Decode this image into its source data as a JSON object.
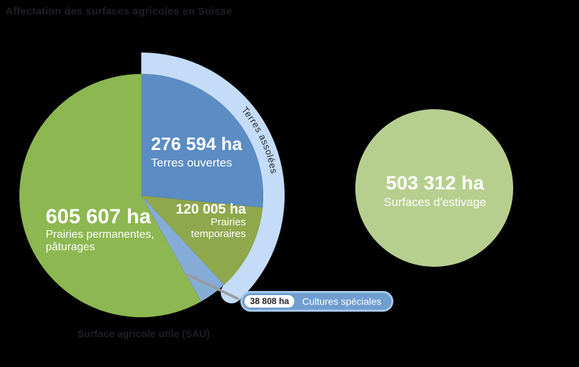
{
  "title": "Affectation des surfaces agricoles en Suisse",
  "caption": "Surface agricole utile (SAU)",
  "unit": "ha",
  "background_color": "#000000",
  "text_dark_color": "#1f1f26",
  "chart_data": {
    "type": "pie",
    "title": "Affectation des surfaces agricoles en Suisse",
    "unit": "ha",
    "start_angle_deg": 0,
    "direction": "clockwise",
    "slices": [
      {
        "id": "terres-ouvertes",
        "label": "Terres ouvertes",
        "value": 276594,
        "display": "276 594 ha",
        "color": "#5b8cc4"
      },
      {
        "id": "prairies-temporaires",
        "label": "Prairies temporaires",
        "label_lines": [
          "Prairies",
          "temporaires"
        ],
        "value": 120005,
        "display": "120 005 ha",
        "color": "#90a84c"
      },
      {
        "id": "cultures-speciales",
        "label": "Cultures spéciales",
        "value": 38808,
        "display": "38 808 ha",
        "color": "#85acd6"
      },
      {
        "id": "prairies-permanentes",
        "label": "Prairies permanentes, pâturages",
        "label_lines": [
          "Prairies permanentes,",
          "pâturages"
        ],
        "value": 605607,
        "display": "605 607 ha",
        "color": "#8db750"
      }
    ],
    "ring_label": "Terres assolées",
    "ring_color": "#c4dcf7",
    "ring_covers": [
      "terres-ouvertes",
      "prairies-temporaires"
    ],
    "separate_circle": {
      "id": "surfaces-estivage",
      "label": "Surfaces d'estivage",
      "value": 503312,
      "display": "503 312 ha",
      "color": "#b7cf8e"
    },
    "callout": {
      "slice": "cultures-speciales",
      "line_color": "#999999"
    }
  }
}
